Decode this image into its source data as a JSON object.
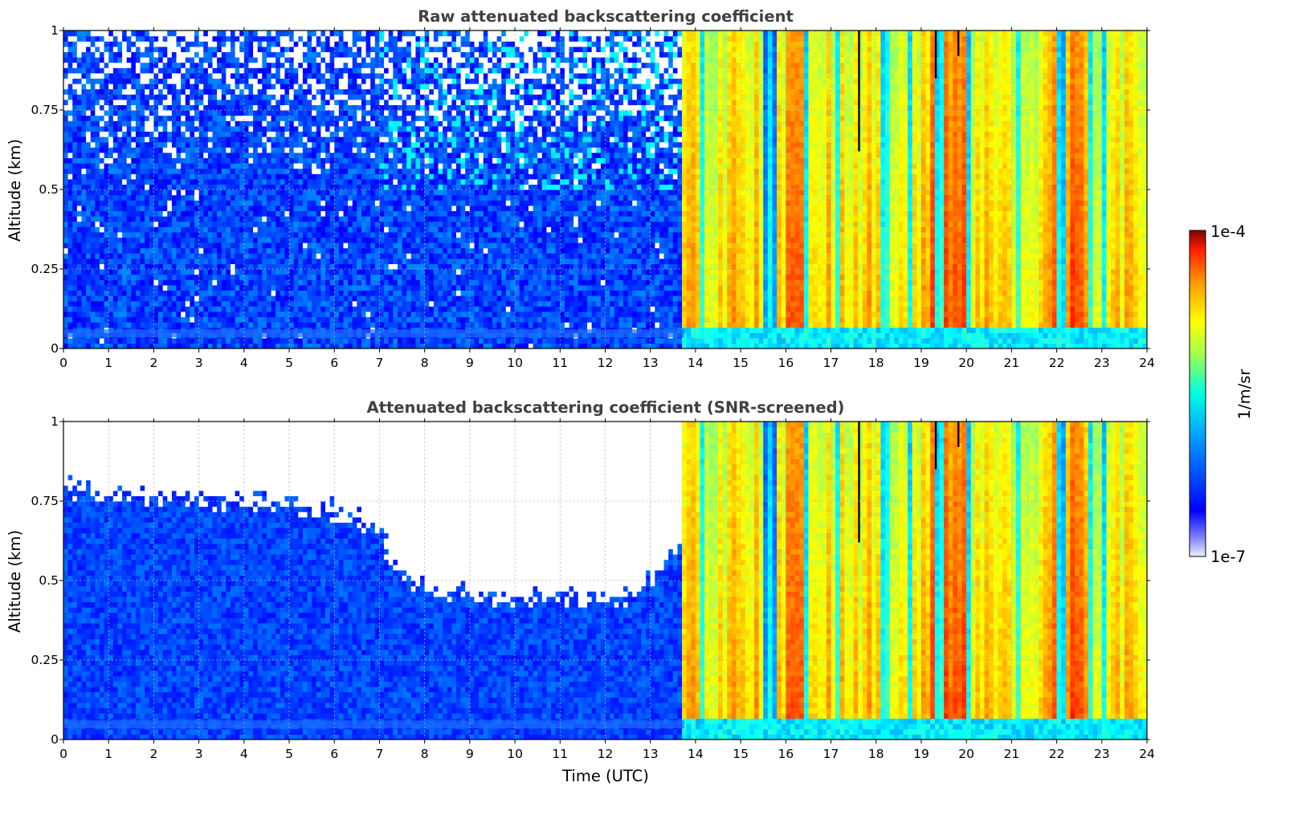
{
  "chart_data": [
    {
      "type": "heatmap",
      "title": "Raw attenuated backscattering coefficient",
      "xlabel": "",
      "ylabel": "Altitude (km)",
      "xlim": [
        0,
        24
      ],
      "ylim": [
        0,
        1
      ],
      "xticks": [
        "0",
        "1",
        "2",
        "3",
        "4",
        "5",
        "6",
        "7",
        "8",
        "9",
        "10",
        "11",
        "12",
        "13",
        "14",
        "15",
        "16",
        "17",
        "18",
        "19",
        "20",
        "21",
        "22",
        "23",
        "24"
      ],
      "yticks": [
        "0",
        "0.25",
        "0.5",
        "0.75",
        "1"
      ],
      "grid": true,
      "colorscale": "jet (log)",
      "features": {
        "daytime_noise_until_utc": 13.75,
        "aerosol_layer_top_km": 1,
        "near_surface_band_km": [
          0,
          0.06
        ],
        "dense_low_signal_below_km": 0.5
      }
    },
    {
      "type": "heatmap",
      "title": "Attenuated backscattering coefficient (SNR-screened)",
      "xlabel": "Time (UTC)",
      "ylabel": "Altitude (km)",
      "xlim": [
        0,
        24
      ],
      "ylim": [
        0,
        1
      ],
      "xticks": [
        "0",
        "1",
        "2",
        "3",
        "4",
        "5",
        "6",
        "7",
        "8",
        "9",
        "10",
        "11",
        "12",
        "13",
        "14",
        "15",
        "16",
        "17",
        "18",
        "19",
        "20",
        "21",
        "22",
        "23",
        "24"
      ],
      "yticks": [
        "0",
        "0.25",
        "0.5",
        "0.75",
        "1"
      ],
      "grid": true,
      "colorscale": "jet (log)",
      "features": {
        "screened_boundary": [
          {
            "t": 0,
            "alt_km": 0.8
          },
          {
            "t": 1,
            "alt_km": 0.77
          },
          {
            "t": 2,
            "alt_km": 0.76
          },
          {
            "t": 3,
            "alt_km": 0.76
          },
          {
            "t": 4,
            "alt_km": 0.75
          },
          {
            "t": 5,
            "alt_km": 0.74
          },
          {
            "t": 6,
            "alt_km": 0.72
          },
          {
            "t": 7,
            "alt_km": 0.67
          },
          {
            "t": 7.3,
            "alt_km": 0.55
          },
          {
            "t": 8,
            "alt_km": 0.48
          },
          {
            "t": 9,
            "alt_km": 0.45
          },
          {
            "t": 10,
            "alt_km": 0.45
          },
          {
            "t": 11,
            "alt_km": 0.44
          },
          {
            "t": 12,
            "alt_km": 0.44
          },
          {
            "t": 12.7,
            "alt_km": 0.46
          },
          {
            "t": 13.3,
            "alt_km": 0.55
          },
          {
            "t": 13.75,
            "alt_km": 0.65
          }
        ],
        "daytime_cutoff_utc": 13.75
      }
    }
  ],
  "colorbar": {
    "max_label": "1e-4",
    "min_label": "1e-7",
    "unit_label": "1/m/sr"
  }
}
